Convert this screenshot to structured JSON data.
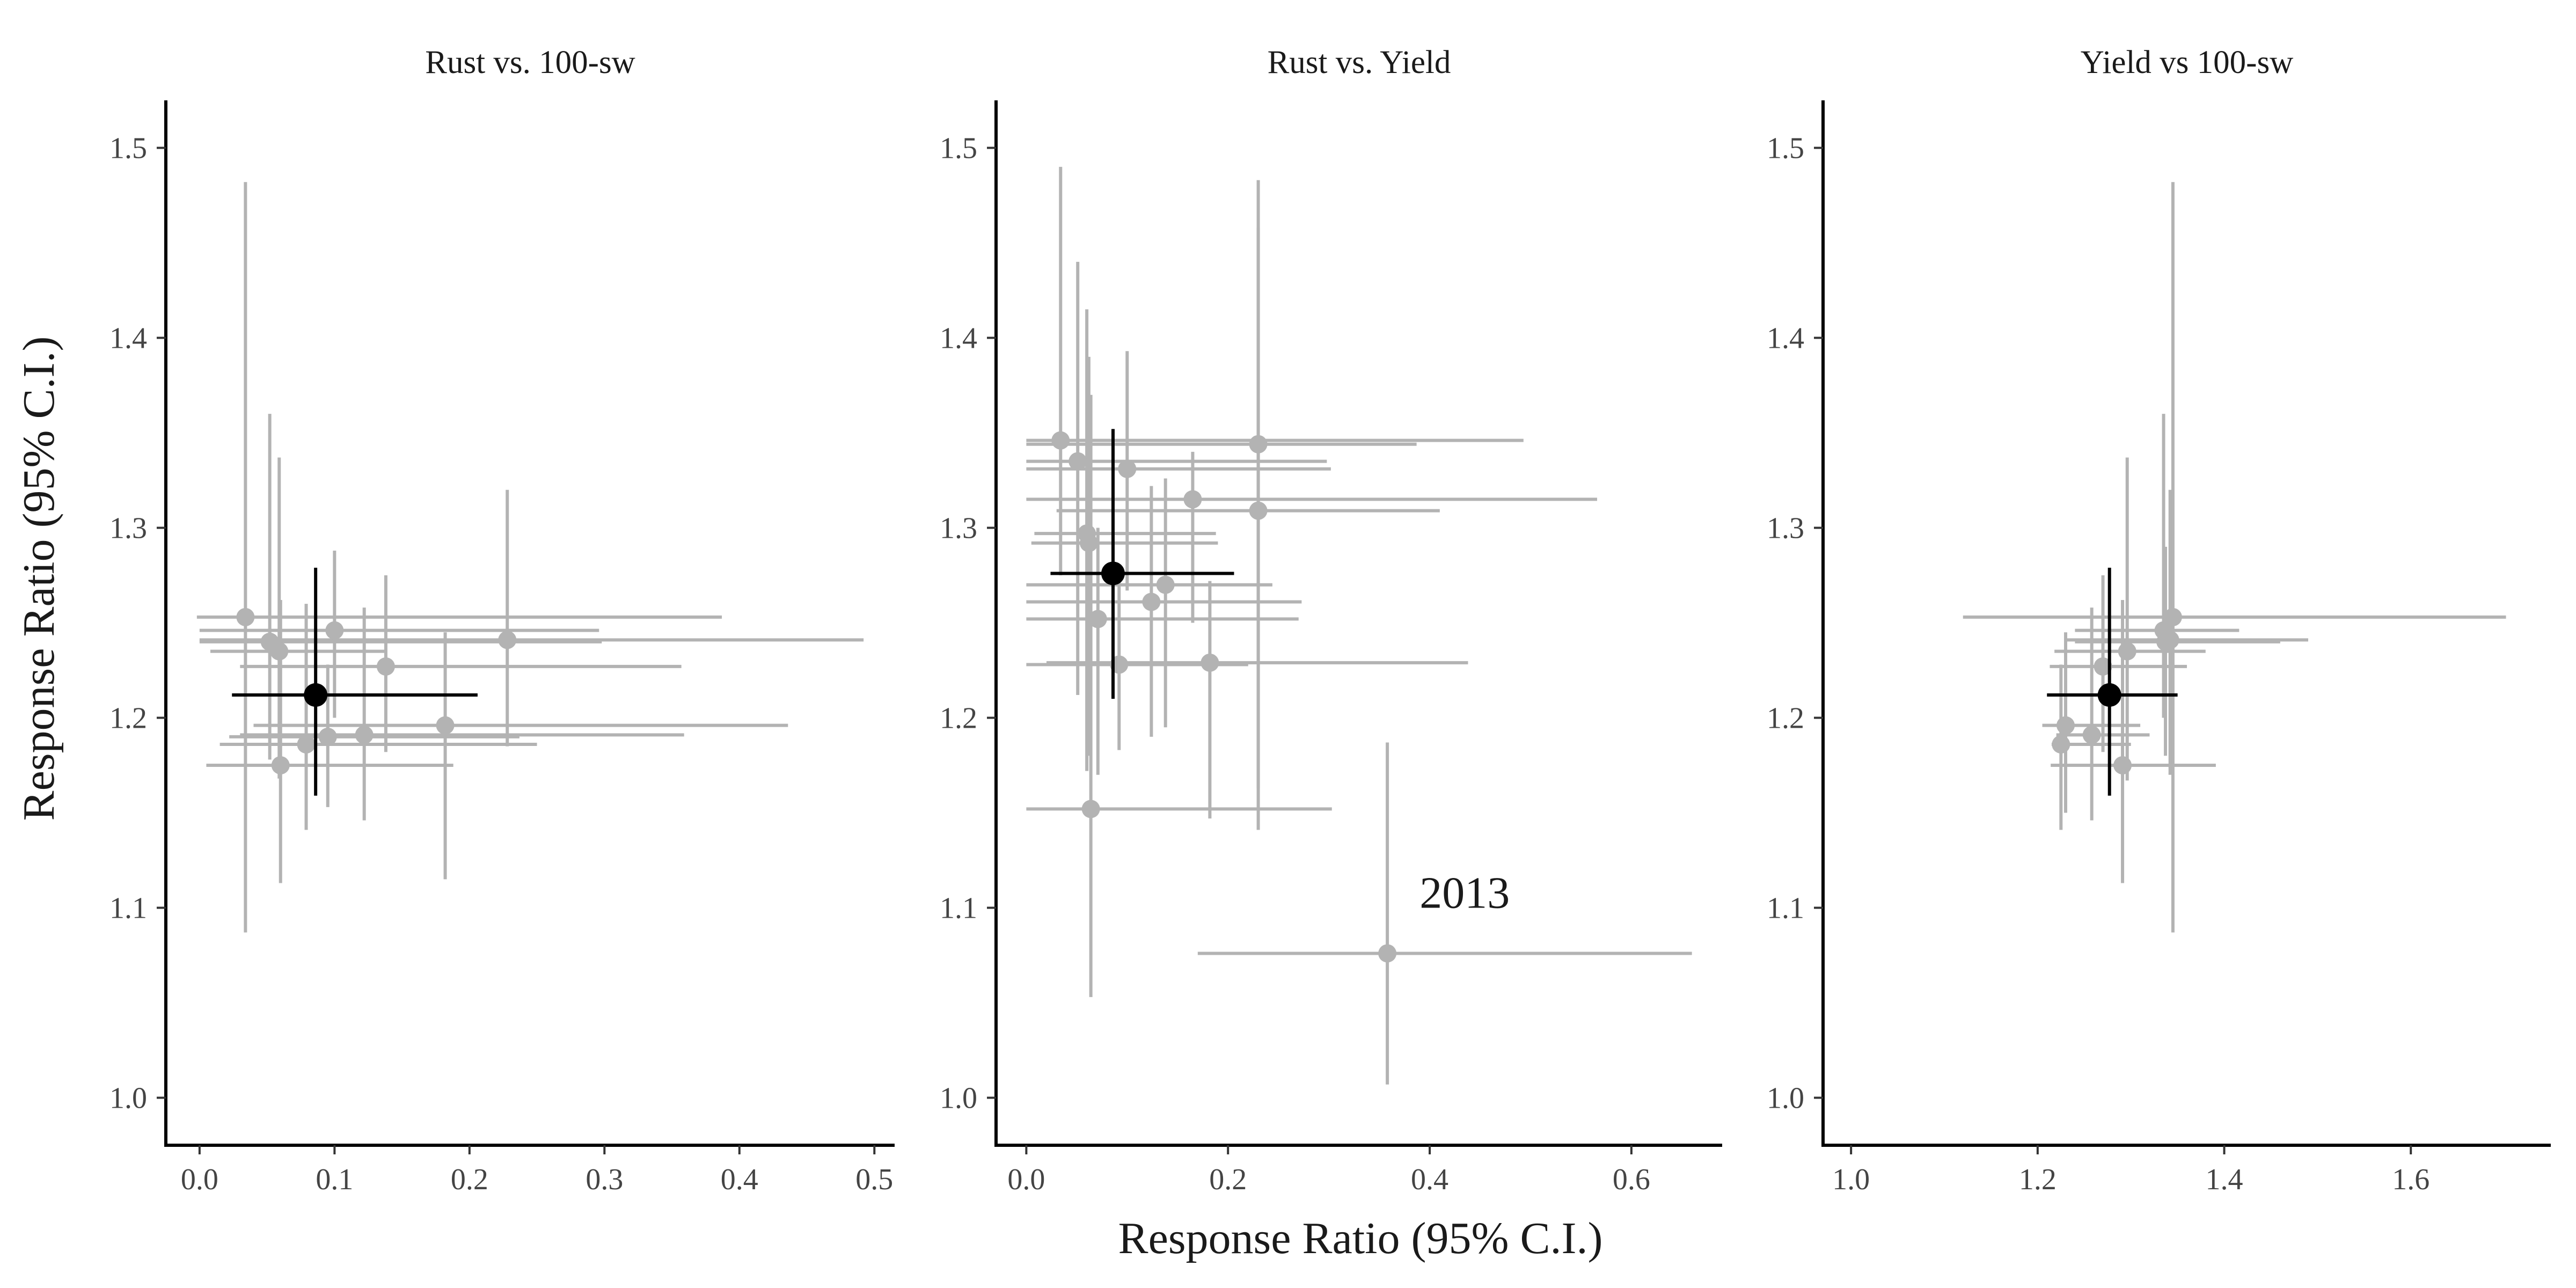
{
  "figure": {
    "xlabel": "Response Ratio (95% C.I.)",
    "ylabel": "Response Ratio (95% C.I.)"
  },
  "colors": {
    "study_points": "#b3b3b3",
    "pooled_estimate": "#000000",
    "axis": "#000000"
  },
  "chart_data": [
    {
      "type": "scatter",
      "title": "Rust vs. 100-sw",
      "xlim": [
        -0.025,
        0.515
      ],
      "ylim": [
        0.975,
        1.525
      ],
      "xticks": [
        0.0,
        0.1,
        0.2,
        0.3,
        0.4,
        0.5
      ],
      "xtick_labels": [
        "0.0",
        "0.1",
        "0.2",
        "0.3",
        "0.4",
        "0.5"
      ],
      "yticks": [
        1.0,
        1.1,
        1.2,
        1.3,
        1.4,
        1.5
      ],
      "ytick_labels": [
        "1.0",
        "1.1",
        "1.2",
        "1.3",
        "1.4",
        "1.5"
      ],
      "grid": false,
      "series": [
        {
          "role": "studies",
          "points": [
            {
              "x": 0.034,
              "y": 1.253,
              "xlo": -0.002,
              "xhi": 0.387,
              "ylo": 1.087,
              "yhi": 1.482
            },
            {
              "x": 0.052,
              "y": 1.24,
              "xlo": 0.0,
              "xhi": 0.298,
              "ylo": 1.178,
              "yhi": 1.36
            },
            {
              "x": 0.059,
              "y": 1.235,
              "xlo": 0.008,
              "xhi": 0.139,
              "ylo": 1.168,
              "yhi": 1.337
            },
            {
              "x": 0.1,
              "y": 1.246,
              "xlo": 0.0,
              "xhi": 0.296,
              "ylo": 1.2,
              "yhi": 1.288
            },
            {
              "x": 0.138,
              "y": 1.227,
              "xlo": 0.03,
              "xhi": 0.357,
              "ylo": 1.182,
              "yhi": 1.275
            },
            {
              "x": 0.228,
              "y": 1.241,
              "xlo": 0.0,
              "xhi": 0.492,
              "ylo": 1.185,
              "yhi": 1.32
            },
            {
              "x": 0.06,
              "y": 1.175,
              "xlo": 0.005,
              "xhi": 0.188,
              "ylo": 1.113,
              "yhi": 1.262
            },
            {
              "x": 0.079,
              "y": 1.186,
              "xlo": 0.015,
              "xhi": 0.25,
              "ylo": 1.141,
              "yhi": 1.26
            },
            {
              "x": 0.095,
              "y": 1.19,
              "xlo": 0.022,
              "xhi": 0.237,
              "ylo": 1.153,
              "yhi": 1.228
            },
            {
              "x": 0.122,
              "y": 1.191,
              "xlo": 0.03,
              "xhi": 0.359,
              "ylo": 1.146,
              "yhi": 1.258
            },
            {
              "x": 0.182,
              "y": 1.196,
              "xlo": 0.04,
              "xhi": 0.436,
              "ylo": 1.115,
              "yhi": 1.245
            }
          ]
        },
        {
          "role": "pooled",
          "points": [
            {
              "x": 0.086,
              "y": 1.212,
              "xlo": 0.024,
              "xhi": 0.206,
              "ylo": 1.159,
              "yhi": 1.279
            }
          ]
        }
      ]
    },
    {
      "type": "scatter",
      "title": "Rust vs. Yield",
      "xlim": [
        -0.03,
        0.69
      ],
      "ylim": [
        0.975,
        1.525
      ],
      "xticks": [
        0.0,
        0.2,
        0.4,
        0.6
      ],
      "xtick_labels": [
        "0.0",
        "0.2",
        "0.4",
        "0.6"
      ],
      "yticks": [
        1.0,
        1.1,
        1.2,
        1.3,
        1.4,
        1.5
      ],
      "ytick_labels": [
        "1.0",
        "1.1",
        "1.2",
        "1.3",
        "1.4",
        "1.5"
      ],
      "grid": false,
      "annotation": {
        "text": "2013",
        "x": 0.39,
        "y": 1.1
      },
      "series": [
        {
          "role": "studies",
          "points": [
            {
              "x": 0.034,
              "y": 1.346,
              "xlo": 0.0,
              "xhi": 0.493,
              "ylo": 1.275,
              "yhi": 1.49
            },
            {
              "x": 0.051,
              "y": 1.335,
              "xlo": 0.0,
              "xhi": 0.298,
              "ylo": 1.212,
              "yhi": 1.44
            },
            {
              "x": 0.1,
              "y": 1.331,
              "xlo": 0.0,
              "xhi": 0.302,
              "ylo": 1.267,
              "yhi": 1.393
            },
            {
              "x": 0.23,
              "y": 1.344,
              "xlo": 0.0,
              "xhi": 0.387,
              "ylo": 1.141,
              "yhi": 1.483
            },
            {
              "x": 0.165,
              "y": 1.315,
              "xlo": 0.0,
              "xhi": 0.566,
              "ylo": 1.25,
              "yhi": 1.34
            },
            {
              "x": 0.23,
              "y": 1.309,
              "xlo": 0.03,
              "xhi": 0.41,
              "ylo": 1.163,
              "yhi": 1.458
            },
            {
              "x": 0.06,
              "y": 1.297,
              "xlo": 0.008,
              "xhi": 0.188,
              "ylo": 1.172,
              "yhi": 1.415
            },
            {
              "x": 0.062,
              "y": 1.292,
              "xlo": 0.005,
              "xhi": 0.19,
              "ylo": 1.18,
              "yhi": 1.39
            },
            {
              "x": 0.124,
              "y": 1.261,
              "xlo": 0.0,
              "xhi": 0.273,
              "ylo": 1.19,
              "yhi": 1.322
            },
            {
              "x": 0.138,
              "y": 1.27,
              "xlo": 0.0,
              "xhi": 0.244,
              "ylo": 1.195,
              "yhi": 1.326
            },
            {
              "x": 0.071,
              "y": 1.252,
              "xlo": 0.0,
              "xhi": 0.27,
              "ylo": 1.17,
              "yhi": 1.3
            },
            {
              "x": 0.092,
              "y": 1.228,
              "xlo": 0.0,
              "xhi": 0.22,
              "ylo": 1.183,
              "yhi": 1.272
            },
            {
              "x": 0.182,
              "y": 1.229,
              "xlo": 0.02,
              "xhi": 0.438,
              "ylo": 1.147,
              "yhi": 1.272
            },
            {
              "x": 0.064,
              "y": 1.152,
              "xlo": 0.0,
              "xhi": 0.303,
              "ylo": 1.053,
              "yhi": 1.37
            },
            {
              "x": 0.358,
              "y": 1.076,
              "xlo": 0.17,
              "xhi": 0.66,
              "ylo": 1.007,
              "yhi": 1.187
            }
          ]
        },
        {
          "role": "pooled",
          "points": [
            {
              "x": 0.086,
              "y": 1.276,
              "xlo": 0.024,
              "xhi": 0.206,
              "ylo": 1.21,
              "yhi": 1.352
            }
          ]
        }
      ]
    },
    {
      "type": "scatter",
      "title": "Yield vs 100-sw",
      "xlim": [
        0.97,
        1.75
      ],
      "ylim": [
        0.975,
        1.525
      ],
      "xticks": [
        1.0,
        1.2,
        1.4,
        1.6
      ],
      "xtick_labels": [
        "1.0",
        "1.2",
        "1.4",
        "1.6"
      ],
      "yticks": [
        1.0,
        1.1,
        1.2,
        1.3,
        1.4,
        1.5
      ],
      "ytick_labels": [
        "1.0",
        "1.1",
        "1.2",
        "1.3",
        "1.4",
        "1.5"
      ],
      "grid": false,
      "series": [
        {
          "role": "studies",
          "points": [
            {
              "x": 1.345,
              "y": 1.253,
              "xlo": 1.12,
              "xhi": 1.702,
              "ylo": 1.087,
              "yhi": 1.482
            },
            {
              "x": 1.335,
              "y": 1.246,
              "xlo": 1.24,
              "xhi": 1.416,
              "ylo": 1.2,
              "yhi": 1.36
            },
            {
              "x": 1.342,
              "y": 1.241,
              "xlo": 1.23,
              "xhi": 1.49,
              "ylo": 1.17,
              "yhi": 1.32
            },
            {
              "x": 1.337,
              "y": 1.24,
              "xlo": 1.24,
              "xhi": 1.46,
              "ylo": 1.18,
              "yhi": 1.29
            },
            {
              "x": 1.296,
              "y": 1.235,
              "xlo": 1.218,
              "xhi": 1.38,
              "ylo": 1.167,
              "yhi": 1.337
            },
            {
              "x": 1.27,
              "y": 1.227,
              "xlo": 1.213,
              "xhi": 1.36,
              "ylo": 1.182,
              "yhi": 1.275
            },
            {
              "x": 1.23,
              "y": 1.196,
              "xlo": 1.205,
              "xhi": 1.31,
              "ylo": 1.15,
              "yhi": 1.245
            },
            {
              "x": 1.258,
              "y": 1.191,
              "xlo": 1.22,
              "xhi": 1.32,
              "ylo": 1.146,
              "yhi": 1.258
            },
            {
              "x": 1.225,
              "y": 1.186,
              "xlo": 1.215,
              "xhi": 1.3,
              "ylo": 1.141,
              "yhi": 1.228
            },
            {
              "x": 1.291,
              "y": 1.175,
              "xlo": 1.214,
              "xhi": 1.391,
              "ylo": 1.113,
              "yhi": 1.262
            }
          ]
        },
        {
          "role": "pooled",
          "points": [
            {
              "x": 1.277,
              "y": 1.212,
              "xlo": 1.21,
              "xhi": 1.35,
              "ylo": 1.159,
              "yhi": 1.279
            }
          ]
        }
      ]
    }
  ]
}
